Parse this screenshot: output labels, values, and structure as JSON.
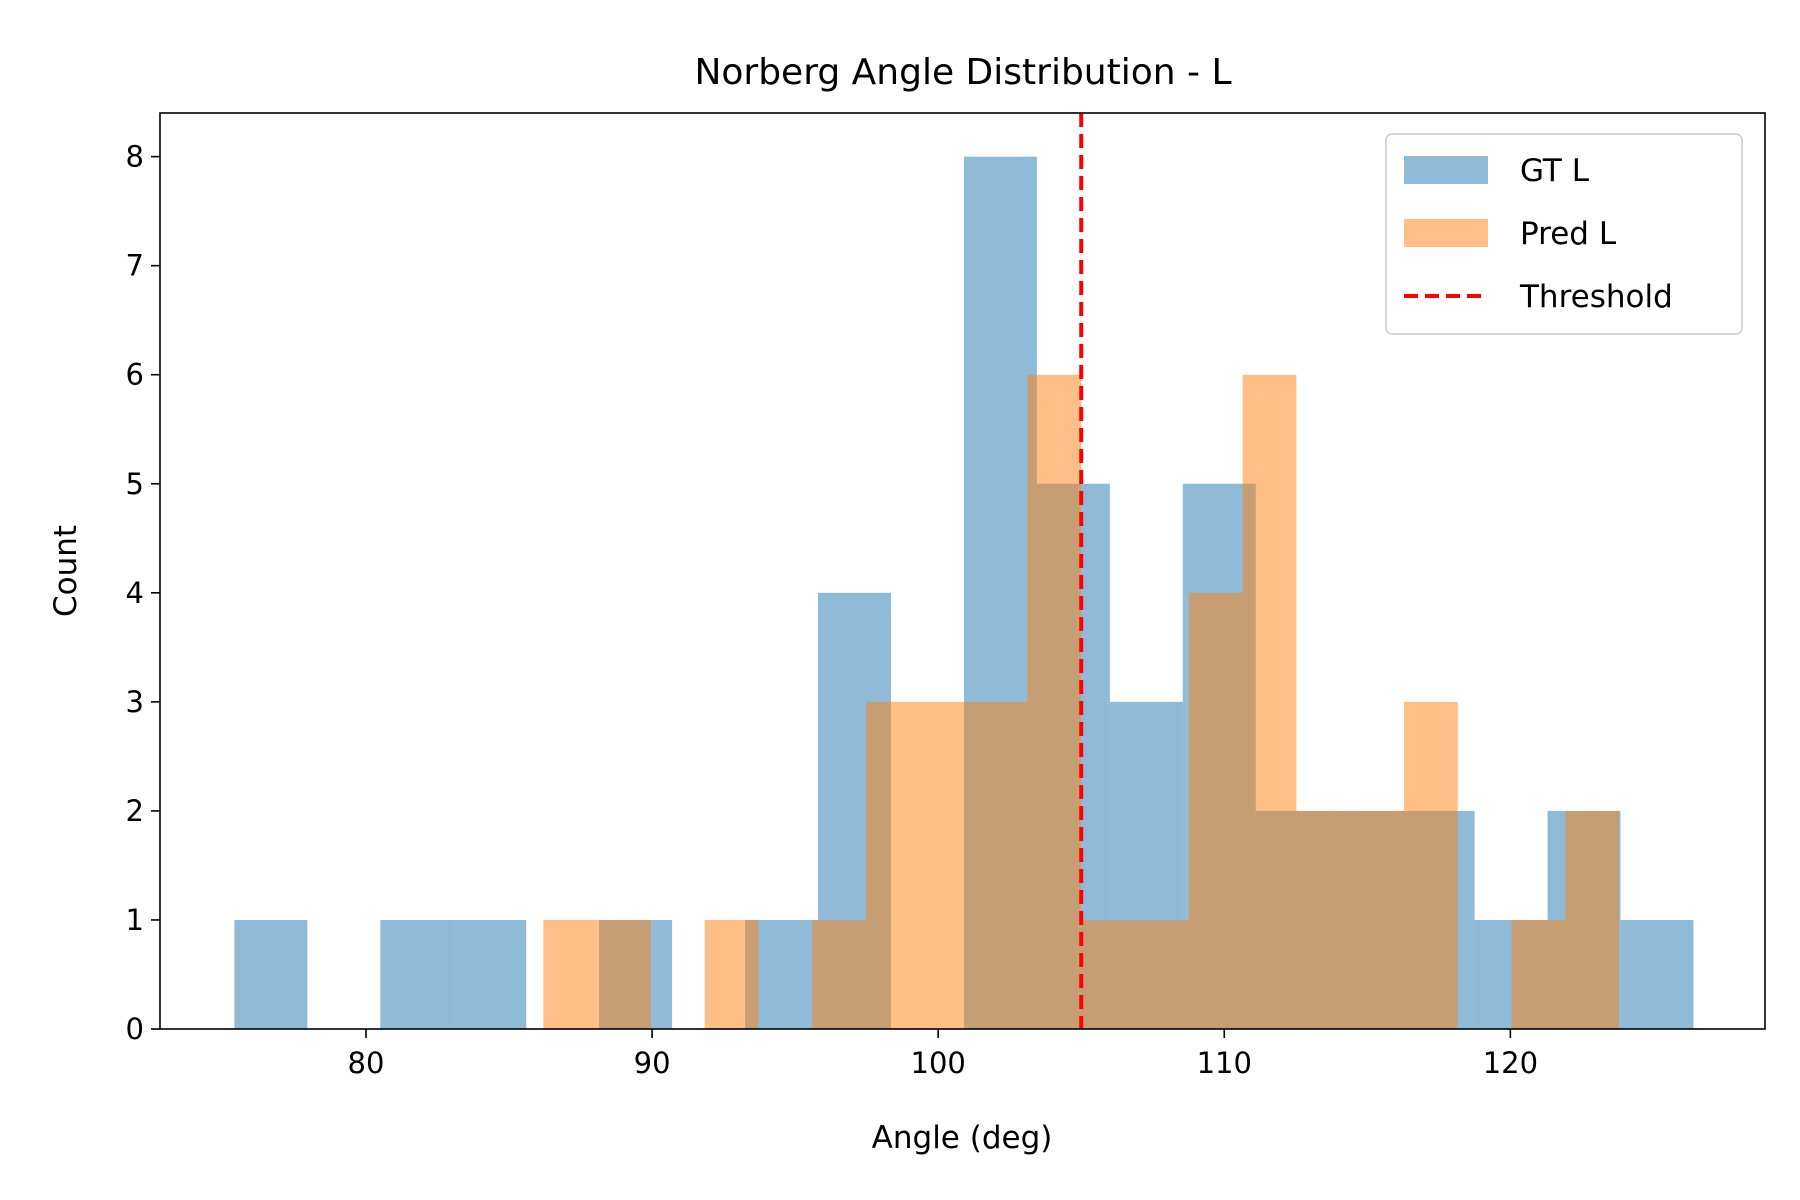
{
  "chart_data": {
    "type": "bar",
    "subtype": "histogram-overlay",
    "title": "Norberg Angle Distribution - L",
    "xlabel": "Angle (deg)",
    "ylabel": "Count",
    "xlim": [
      72.8,
      128.9
    ],
    "ylim": [
      0,
      8.4
    ],
    "xticks": [
      80,
      90,
      100,
      110,
      120
    ],
    "yticks": [
      0,
      1,
      2,
      3,
      4,
      5,
      6,
      7,
      8
    ],
    "grid": false,
    "legend_position": "top-right",
    "series": [
      {
        "name": "GT L",
        "color": "#1f77b4",
        "alpha": 0.5,
        "bins": [
          {
            "x0": 75.4,
            "x1": 77.95,
            "count": 1
          },
          {
            "x0": 77.95,
            "x1": 80.5,
            "count": 0
          },
          {
            "x0": 80.5,
            "x1": 83.05,
            "count": 1
          },
          {
            "x0": 83.05,
            "x1": 85.6,
            "count": 1
          },
          {
            "x0": 85.6,
            "x1": 88.15,
            "count": 0
          },
          {
            "x0": 88.15,
            "x1": 90.7,
            "count": 1
          },
          {
            "x0": 90.7,
            "x1": 93.25,
            "count": 0
          },
          {
            "x0": 93.25,
            "x1": 95.8,
            "count": 1
          },
          {
            "x0": 95.8,
            "x1": 98.35,
            "count": 4
          },
          {
            "x0": 98.35,
            "x1": 100.9,
            "count": 0
          },
          {
            "x0": 100.9,
            "x1": 103.45,
            "count": 8
          },
          {
            "x0": 103.45,
            "x1": 106.0,
            "count": 5
          },
          {
            "x0": 106.0,
            "x1": 108.55,
            "count": 3
          },
          {
            "x0": 108.55,
            "x1": 111.1,
            "count": 5
          },
          {
            "x0": 111.1,
            "x1": 113.65,
            "count": 2
          },
          {
            "x0": 113.65,
            "x1": 116.2,
            "count": 2
          },
          {
            "x0": 116.2,
            "x1": 118.75,
            "count": 2
          },
          {
            "x0": 118.75,
            "x1": 121.3,
            "count": 1
          },
          {
            "x0": 121.3,
            "x1": 123.85,
            "count": 2
          },
          {
            "x0": 123.85,
            "x1": 126.4,
            "count": 1
          }
        ]
      },
      {
        "name": "Pred L",
        "color": "#ff7f0e",
        "alpha": 0.5,
        "bins": [
          {
            "x0": 86.2,
            "x1": 88.08,
            "count": 1
          },
          {
            "x0": 88.08,
            "x1": 89.96,
            "count": 1
          },
          {
            "x0": 89.96,
            "x1": 91.84,
            "count": 0
          },
          {
            "x0": 91.84,
            "x1": 93.72,
            "count": 1
          },
          {
            "x0": 93.72,
            "x1": 95.6,
            "count": 0
          },
          {
            "x0": 95.6,
            "x1": 97.48,
            "count": 1
          },
          {
            "x0": 97.48,
            "x1": 99.36,
            "count": 3
          },
          {
            "x0": 99.36,
            "x1": 101.24,
            "count": 3
          },
          {
            "x0": 101.24,
            "x1": 103.12,
            "count": 3
          },
          {
            "x0": 103.12,
            "x1": 105.0,
            "count": 6
          },
          {
            "x0": 105.0,
            "x1": 106.88,
            "count": 1
          },
          {
            "x0": 106.88,
            "x1": 108.76,
            "count": 1
          },
          {
            "x0": 108.76,
            "x1": 110.64,
            "count": 4
          },
          {
            "x0": 110.64,
            "x1": 112.52,
            "count": 6
          },
          {
            "x0": 112.52,
            "x1": 114.4,
            "count": 2
          },
          {
            "x0": 114.4,
            "x1": 116.28,
            "count": 2
          },
          {
            "x0": 116.28,
            "x1": 118.16,
            "count": 3
          },
          {
            "x0": 118.16,
            "x1": 120.04,
            "count": 0
          },
          {
            "x0": 120.04,
            "x1": 121.92,
            "count": 1
          },
          {
            "x0": 121.92,
            "x1": 123.8,
            "count": 2
          }
        ]
      }
    ],
    "threshold": {
      "name": "Threshold",
      "x": 105,
      "color": "#ff0000",
      "style": "dashed"
    }
  }
}
